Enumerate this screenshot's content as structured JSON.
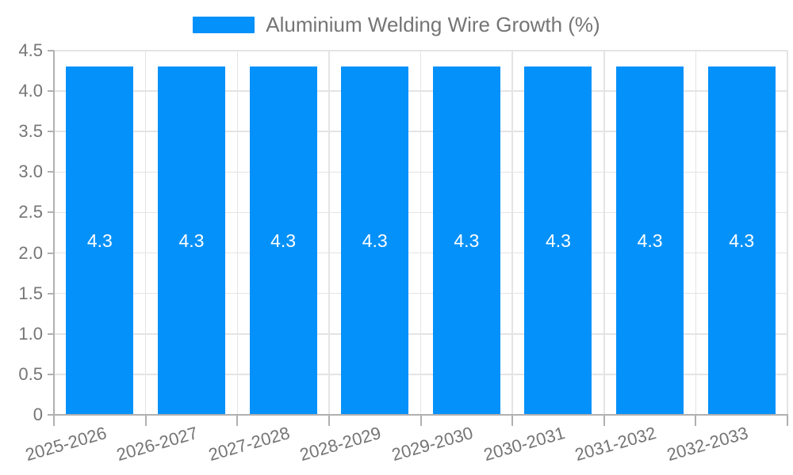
{
  "legend": {
    "label": "Aluminium Welding Wire Growth (%)"
  },
  "chart_data": {
    "type": "bar",
    "title": "Aluminium Welding Wire Growth (%)",
    "legend_entries": [
      "Aluminium Welding Wire Growth (%)"
    ],
    "legend_position": "top-center",
    "categories": [
      "2025-2026",
      "2026-2027",
      "2027-2028",
      "2028-2029",
      "2029-2030",
      "2030-2031",
      "2031-2032",
      "2032-2033"
    ],
    "values": [
      4.3,
      4.3,
      4.3,
      4.3,
      4.3,
      4.3,
      4.3,
      4.3
    ],
    "bar_labels": [
      "4.3",
      "4.3",
      "4.3",
      "4.3",
      "4.3",
      "4.3",
      "4.3",
      "4.3"
    ],
    "xlabel": "",
    "ylabel": "",
    "ylim": [
      0,
      4.5
    ],
    "yticks": [
      {
        "v": 0,
        "label": "0"
      },
      {
        "v": 0.5,
        "label": "0.5"
      },
      {
        "v": 1.0,
        "label": "1.0"
      },
      {
        "v": 1.5,
        "label": "1.5"
      },
      {
        "v": 2.0,
        "label": "2.0"
      },
      {
        "v": 2.5,
        "label": "2.5"
      },
      {
        "v": 3.0,
        "label": "3.0"
      },
      {
        "v": 3.5,
        "label": "3.5"
      },
      {
        "v": 4.0,
        "label": "4.0"
      },
      {
        "v": 4.5,
        "label": "4.5"
      }
    ],
    "grid": true,
    "colors": {
      "bar": "#0591fa",
      "grid": "#e4e4e4",
      "axis": "#b0b0b0",
      "tick_text": "#757575",
      "legend_text": "#757575",
      "bar_label_text": "#ffffff",
      "background": "#ffffff"
    }
  }
}
